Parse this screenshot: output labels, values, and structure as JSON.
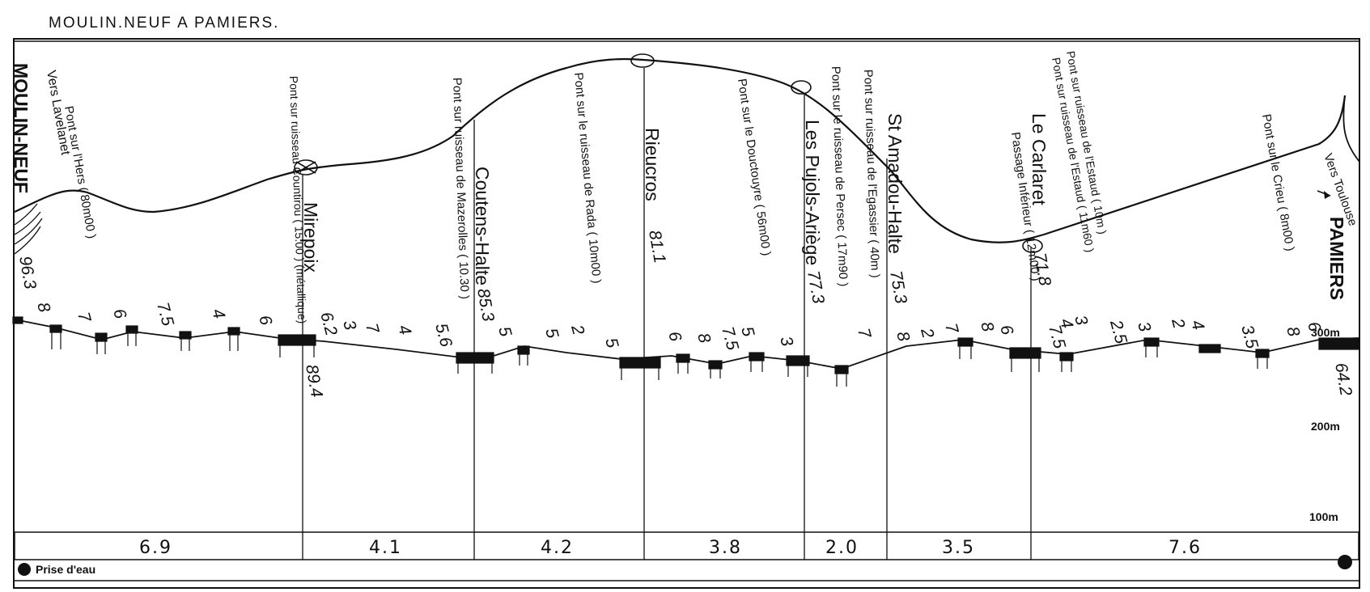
{
  "title": "MOULIN.NEUF A PAMIERS.",
  "stations": [
    {
      "name": "MOULIN-NEUF",
      "km": "96.3"
    },
    {
      "name": "Mirepoix",
      "km": "89.4"
    },
    {
      "name": "Coutens-Halte",
      "km": "85.3"
    },
    {
      "name": "Rieucros",
      "km": "81.1"
    },
    {
      "name": "Les Pujols-Ariège",
      "km": "77.3"
    },
    {
      "name": "St Amadou-Halte",
      "km": "75.3"
    },
    {
      "name": "Le Carlaret",
      "km": "71.8"
    },
    {
      "name": "PAMIERS",
      "km": "64.2"
    }
  ],
  "directions": {
    "left": "Vers Lavelanet",
    "right": "Vers Toulouse"
  },
  "bridges": [
    "Pont sur l'Hers ( 80m00 )",
    "Pont sur ruisseau Countirou ( 15.00 ) (métallique)",
    "Pont sur ruisseau de Mazerolles ( 10.30 )",
    "Pont sur le ruisseau de Rada ( 10m00 )",
    "Pont sur le Douctouyre ( 56m00 )",
    "Pont sur le ruisseau de Persec ( 17m90 )",
    "Pont sur ruisseau de l'Egassier ( 40m )",
    "Passage Inférieur ( 12m00 )",
    "Pont sur ruisseau de l'Estaud ( 10m )",
    "Pont sur ruisseau de l'Estaud ( 11m60 )",
    "Pont sur le Crieu ( 8m00 )"
  ],
  "gradients": [
    "8",
    "7",
    "6",
    "7.5",
    "4",
    "6",
    "6.2",
    "3",
    "7",
    "4",
    "5.6",
    "5",
    "5",
    "2",
    "5",
    "6",
    "8",
    "7.5",
    "5",
    "3",
    "7",
    "8",
    "2",
    "7",
    "8",
    "6",
    "7.5",
    "4",
    "3",
    "2.5",
    "3",
    "2",
    "4",
    "3.5",
    "8",
    "6"
  ],
  "altitude_labels": [
    "300m",
    "200m",
    "100m"
  ],
  "segments": [
    "6.9",
    "4.1",
    "4.2",
    "3.8",
    "2.0",
    "3.5",
    "7.6"
  ],
  "legend": {
    "prise_deau": "Prise d'eau"
  }
}
